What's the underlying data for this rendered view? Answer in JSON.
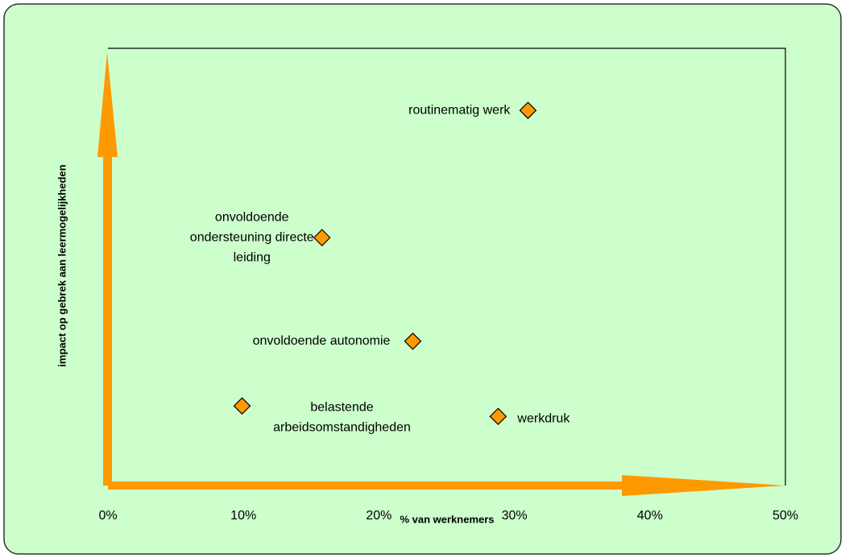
{
  "chart_data": {
    "type": "scatter",
    "x_label": "% van werknemers",
    "y_label": "impact op gebrek aan leermogelijkheden",
    "xlim": [
      0,
      50
    ],
    "xticks": [
      {
        "value": 0,
        "label": "0%"
      },
      {
        "value": 10,
        "label": "10%"
      },
      {
        "value": 20,
        "label": "20%"
      },
      {
        "value": 30,
        "label": "30%"
      },
      {
        "value": 40,
        "label": "40%"
      },
      {
        "value": 50,
        "label": "50%"
      }
    ],
    "ylim": [
      0,
      10
    ],
    "color": "#ff9900",
    "points": [
      {
        "label": [
          "routinematig werk"
        ],
        "x": 31.0,
        "y": 8.58
      },
      {
        "label": [
          "onvoldoende",
          "ondersteuning directe",
          "leiding"
        ],
        "x": 15.8,
        "y": 5.67
      },
      {
        "label": [
          "onvoldoende autonomie"
        ],
        "x": 22.5,
        "y": 3.3
      },
      {
        "label": [
          "belastende",
          "arbeidsomstandigheden"
        ],
        "x": 9.9,
        "y": 1.82
      },
      {
        "label": [
          "werkdruk"
        ],
        "x": 28.8,
        "y": 1.58
      }
    ]
  }
}
